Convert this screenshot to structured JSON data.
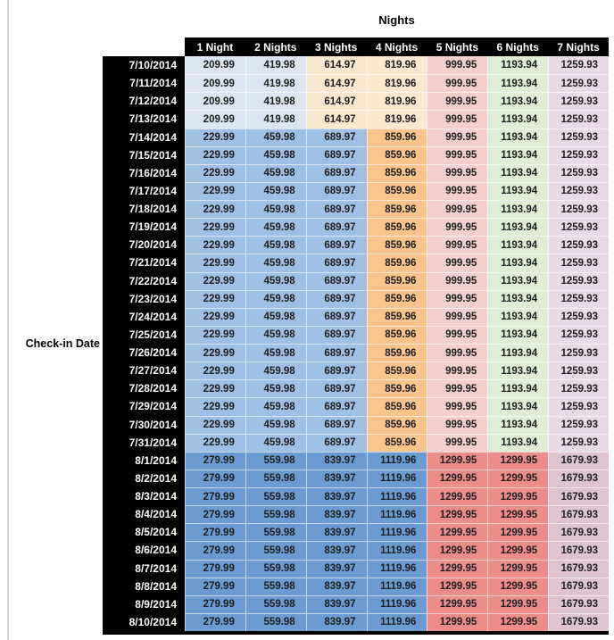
{
  "palette": {
    "header_bg": "#000000",
    "header_text": "#ffffff",
    "light_blue": "#dbe6f2",
    "cream": "#fbe8cf",
    "mid_blue": "#9fc0e2",
    "orange": "#f9c58c",
    "pink": "#f3cfce",
    "green": "#dfeed3",
    "lavender": "#e8dbe7",
    "dark_blue": "#6b9bd2",
    "red": "#ec8d8a",
    "mauve": "#e0c3d1"
  },
  "chart_data": {
    "type": "table",
    "title": "Nights",
    "row_axis_label": "Check-in Date",
    "columns": [
      "1 Night",
      "2 Nights",
      "3 Nights",
      "4 Nights",
      "5 Nights",
      "6 Nights",
      "7 Nights"
    ],
    "group_colors": {
      "early_july": [
        "light_blue",
        "light_blue",
        "cream",
        "cream",
        "pink",
        "green",
        "lavender"
      ],
      "mid_july": [
        "mid_blue",
        "mid_blue",
        "mid_blue",
        "orange",
        "pink",
        "green",
        "lavender"
      ],
      "august": [
        "dark_blue",
        "dark_blue",
        "dark_blue",
        "dark_blue",
        "red",
        "red",
        "mauve"
      ]
    },
    "rows": [
      {
        "date": "7/10/2014",
        "group": "early_july",
        "values": [
          "209.99",
          "419.98",
          "614.97",
          "819.96",
          "999.95",
          "1193.94",
          "1259.93"
        ]
      },
      {
        "date": "7/11/2014",
        "group": "early_july",
        "values": [
          "209.99",
          "419.98",
          "614.97",
          "819.96",
          "999.95",
          "1193.94",
          "1259.93"
        ]
      },
      {
        "date": "7/12/2014",
        "group": "early_july",
        "values": [
          "209.99",
          "419.98",
          "614.97",
          "819.96",
          "999.95",
          "1193.94",
          "1259.93"
        ]
      },
      {
        "date": "7/13/2014",
        "group": "early_july",
        "values": [
          "209.99",
          "419.98",
          "614.97",
          "819.96",
          "999.95",
          "1193.94",
          "1259.93"
        ]
      },
      {
        "date": "7/14/2014",
        "group": "mid_july",
        "values": [
          "229.99",
          "459.98",
          "689.97",
          "859.96",
          "999.95",
          "1193.94",
          "1259.93"
        ]
      },
      {
        "date": "7/15/2014",
        "group": "mid_july",
        "values": [
          "229.99",
          "459.98",
          "689.97",
          "859.96",
          "999.95",
          "1193.94",
          "1259.93"
        ]
      },
      {
        "date": "7/16/2014",
        "group": "mid_july",
        "values": [
          "229.99",
          "459.98",
          "689.97",
          "859.96",
          "999.95",
          "1193.94",
          "1259.93"
        ]
      },
      {
        "date": "7/17/2014",
        "group": "mid_july",
        "values": [
          "229.99",
          "459.98",
          "689.97",
          "859.96",
          "999.95",
          "1193.94",
          "1259.93"
        ]
      },
      {
        "date": "7/18/2014",
        "group": "mid_july",
        "values": [
          "229.99",
          "459.98",
          "689.97",
          "859.96",
          "999.95",
          "1193.94",
          "1259.93"
        ]
      },
      {
        "date": "7/19/2014",
        "group": "mid_july",
        "values": [
          "229.99",
          "459.98",
          "689.97",
          "859.96",
          "999.95",
          "1193.94",
          "1259.93"
        ]
      },
      {
        "date": "7/20/2014",
        "group": "mid_july",
        "values": [
          "229.99",
          "459.98",
          "689.97",
          "859.96",
          "999.95",
          "1193.94",
          "1259.93"
        ]
      },
      {
        "date": "7/21/2014",
        "group": "mid_july",
        "values": [
          "229.99",
          "459.98",
          "689.97",
          "859.96",
          "999.95",
          "1193.94",
          "1259.93"
        ]
      },
      {
        "date": "7/22/2014",
        "group": "mid_july",
        "values": [
          "229.99",
          "459.98",
          "689.97",
          "859.96",
          "999.95",
          "1193.94",
          "1259.93"
        ]
      },
      {
        "date": "7/23/2014",
        "group": "mid_july",
        "values": [
          "229.99",
          "459.98",
          "689.97",
          "859.96",
          "999.95",
          "1193.94",
          "1259.93"
        ]
      },
      {
        "date": "7/24/2014",
        "group": "mid_july",
        "values": [
          "229.99",
          "459.98",
          "689.97",
          "859.96",
          "999.95",
          "1193.94",
          "1259.93"
        ]
      },
      {
        "date": "7/25/2014",
        "group": "mid_july",
        "values": [
          "229.99",
          "459.98",
          "689.97",
          "859.96",
          "999.95",
          "1193.94",
          "1259.93"
        ]
      },
      {
        "date": "7/26/2014",
        "group": "mid_july",
        "values": [
          "229.99",
          "459.98",
          "689.97",
          "859.96",
          "999.95",
          "1193.94",
          "1259.93"
        ]
      },
      {
        "date": "7/27/2014",
        "group": "mid_july",
        "values": [
          "229.99",
          "459.98",
          "689.97",
          "859.96",
          "999.95",
          "1193.94",
          "1259.93"
        ]
      },
      {
        "date": "7/28/2014",
        "group": "mid_july",
        "values": [
          "229.99",
          "459.98",
          "689.97",
          "859.96",
          "999.95",
          "1193.94",
          "1259.93"
        ]
      },
      {
        "date": "7/29/2014",
        "group": "mid_july",
        "values": [
          "229.99",
          "459.98",
          "689.97",
          "859.96",
          "999.95",
          "1193.94",
          "1259.93"
        ]
      },
      {
        "date": "7/30/2014",
        "group": "mid_july",
        "values": [
          "229.99",
          "459.98",
          "689.97",
          "859.96",
          "999.95",
          "1193.94",
          "1259.93"
        ]
      },
      {
        "date": "7/31/2014",
        "group": "mid_july",
        "values": [
          "229.99",
          "459.98",
          "689.97",
          "859.96",
          "999.95",
          "1193.94",
          "1259.93"
        ]
      },
      {
        "date": "8/1/2014",
        "group": "august",
        "values": [
          "279.99",
          "559.98",
          "839.97",
          "1119.96",
          "1299.95",
          "1299.95",
          "1679.93"
        ]
      },
      {
        "date": "8/2/2014",
        "group": "august",
        "values": [
          "279.99",
          "559.98",
          "839.97",
          "1119.96",
          "1299.95",
          "1299.95",
          "1679.93"
        ]
      },
      {
        "date": "8/3/2014",
        "group": "august",
        "values": [
          "279.99",
          "559.98",
          "839.97",
          "1119.96",
          "1299.95",
          "1299.95",
          "1679.93"
        ]
      },
      {
        "date": "8/4/2014",
        "group": "august",
        "values": [
          "279.99",
          "559.98",
          "839.97",
          "1119.96",
          "1299.95",
          "1299.95",
          "1679.93"
        ]
      },
      {
        "date": "8/5/2014",
        "group": "august",
        "values": [
          "279.99",
          "559.98",
          "839.97",
          "1119.96",
          "1299.95",
          "1299.95",
          "1679.93"
        ]
      },
      {
        "date": "8/6/2014",
        "group": "august",
        "values": [
          "279.99",
          "559.98",
          "839.97",
          "1119.96",
          "1299.95",
          "1299.95",
          "1679.93"
        ]
      },
      {
        "date": "8/7/2014",
        "group": "august",
        "values": [
          "279.99",
          "559.98",
          "839.97",
          "1119.96",
          "1299.95",
          "1299.95",
          "1679.93"
        ]
      },
      {
        "date": "8/8/2014",
        "group": "august",
        "values": [
          "279.99",
          "559.98",
          "839.97",
          "1119.96",
          "1299.95",
          "1299.95",
          "1679.93"
        ]
      },
      {
        "date": "8/9/2014",
        "group": "august",
        "values": [
          "279.99",
          "559.98",
          "839.97",
          "1119.96",
          "1299.95",
          "1299.95",
          "1679.93"
        ]
      },
      {
        "date": "8/10/2014",
        "group": "august",
        "values": [
          "279.99",
          "559.98",
          "839.97",
          "1119.96",
          "1299.95",
          "1299.95",
          "1679.93"
        ]
      }
    ]
  }
}
